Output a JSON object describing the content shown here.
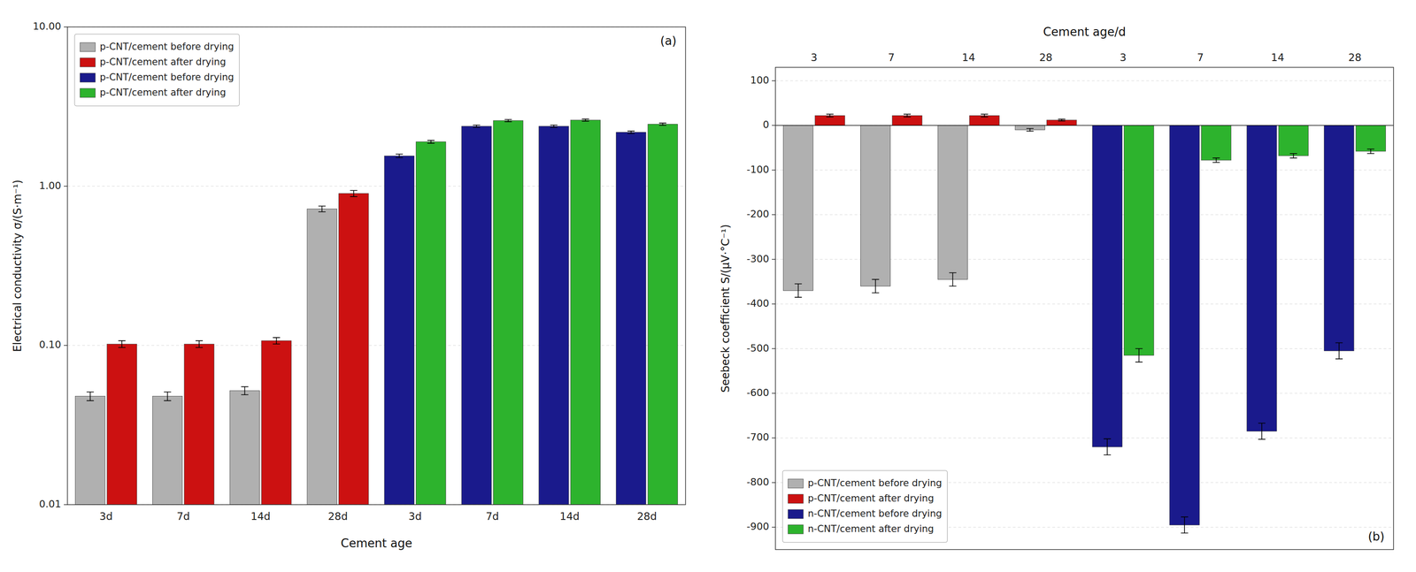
{
  "chart_data": [
    {
      "type": "bar",
      "title": "(a)",
      "xlabel": "Cement age",
      "ylabel": "Electrical conductivity σ/(S·m⁻¹)",
      "categories": [
        "3d",
        "7d",
        "14d",
        "28d",
        "3d",
        "7d",
        "14d",
        "28d"
      ],
      "series": [
        {
          "name": "p-CNT/cement before drying",
          "color": "#b0b0b0",
          "values": [
            0.048,
            0.048,
            0.052,
            0.72,
            null,
            null,
            null,
            null
          ],
          "errors": [
            0.003,
            0.003,
            0.003,
            0.03,
            null,
            null,
            null,
            null
          ]
        },
        {
          "name": "p-CNT/cement after drying",
          "color": "#cc1111",
          "values": [
            0.102,
            0.102,
            0.107,
            0.9,
            null,
            null,
            null,
            null
          ],
          "errors": [
            0.005,
            0.005,
            0.005,
            0.04,
            null,
            null,
            null,
            null
          ]
        },
        {
          "name": "p-CNT/cement before drying",
          "color": "#1a1a8c",
          "values": [
            null,
            null,
            null,
            null,
            1.55,
            2.38,
            2.38,
            2.18
          ],
          "errors": [
            null,
            null,
            null,
            null,
            0.04,
            0.04,
            0.04,
            0.04
          ]
        },
        {
          "name": "p-CNT/cement after drying",
          "color": "#2db32d",
          "values": [
            null,
            null,
            null,
            null,
            1.9,
            2.58,
            2.6,
            2.45
          ],
          "errors": [
            null,
            null,
            null,
            null,
            0.04,
            0.04,
            0.04,
            0.04
          ]
        }
      ],
      "ylim": [
        0.01,
        10.0
      ],
      "yticks": [
        0.01,
        {
          "value": 0.1,
          "label": "0.10"
        },
        {
          "value": 1.0,
          "label": "1.00"
        },
        {
          "value": 10.0,
          "label": "10.00"
        }
      ],
      "log": "y",
      "grid": true,
      "legend": "upper left"
    },
    {
      "type": "bar",
      "title": "(b)",
      "xlabel": "Cement age/d",
      "ylabel": "Seebeck coefficient S/(μV·°C⁻¹)",
      "categories": [
        "3",
        "7",
        "14",
        "28",
        "3",
        "7",
        "14",
        "28"
      ],
      "series": [
        {
          "name": "p-CNT/cement before drying",
          "color": "#b0b0b0",
          "values": [
            -370,
            -360,
            -345,
            -10,
            null,
            null,
            null,
            null
          ],
          "errors": [
            15,
            15,
            15,
            3,
            null,
            null,
            null,
            null
          ]
        },
        {
          "name": "p-CNT/cement after drying",
          "color": "#cc1111",
          "values": [
            22,
            22,
            22,
            12,
            null,
            null,
            null,
            null
          ],
          "errors": [
            3,
            3,
            3,
            2,
            null,
            null,
            null,
            null
          ]
        },
        {
          "name": "n-CNT/cement before drying",
          "color": "#1a1a8c",
          "values": [
            null,
            null,
            null,
            null,
            -720,
            -895,
            -685,
            -505
          ],
          "errors": [
            null,
            null,
            null,
            null,
            18,
            18,
            18,
            18
          ]
        },
        {
          "name": "n-CNT/cement after drying",
          "color": "#2db32d",
          "values": [
            null,
            null,
            null,
            null,
            -515,
            -78,
            -68,
            -58
          ],
          "errors": [
            null,
            null,
            null,
            null,
            15,
            5,
            5,
            5
          ]
        }
      ],
      "ylim": [
        -950,
        130
      ],
      "yticks": [
        100,
        0,
        -100,
        -200,
        -300,
        -400,
        -500,
        -600,
        -700,
        -800,
        -900
      ],
      "grid": true,
      "legend": "lower left"
    }
  ]
}
